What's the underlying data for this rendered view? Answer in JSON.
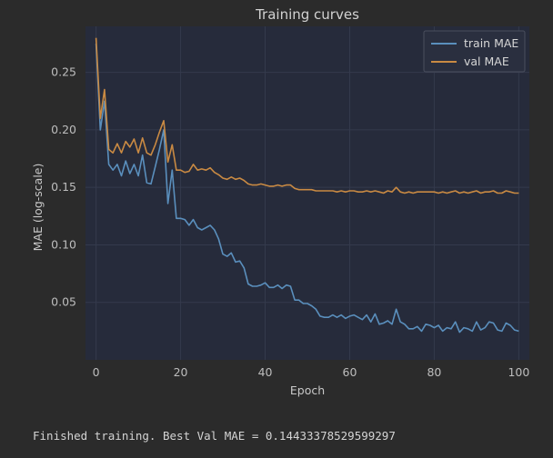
{
  "output": {
    "text": "Finished training. Best Val MAE = 0.14433378529599297"
  },
  "colors": {
    "background": "#2b2b2b",
    "plot_bg": "#262b3b",
    "grid": "#343a4c",
    "train": "#5a8fbd",
    "val": "#c98a43"
  },
  "chart_data": {
    "type": "line",
    "title": "Training curves",
    "xlabel": "Epoch",
    "ylabel": "MAE (log-scale)",
    "xlim": [
      -2.5,
      102.5
    ],
    "ylim": [
      0.0,
      0.29
    ],
    "xticks": [
      0,
      20,
      40,
      60,
      80,
      100
    ],
    "yticks": [
      0.05,
      0.1,
      0.15,
      0.2,
      0.25
    ],
    "ytick_labels": [
      "0.05",
      "0.10",
      "0.15",
      "0.20",
      "0.25"
    ],
    "grid": true,
    "legend": "top-right",
    "series": [
      {
        "name": "train MAE",
        "color": "#5a8fbd",
        "values": [
          0.275,
          0.2,
          0.225,
          0.17,
          0.165,
          0.17,
          0.16,
          0.173,
          0.162,
          0.17,
          0.16,
          0.178,
          0.154,
          0.153,
          0.168,
          0.183,
          0.2,
          0.136,
          0.165,
          0.123,
          0.123,
          0.122,
          0.117,
          0.122,
          0.115,
          0.113,
          0.115,
          0.117,
          0.113,
          0.105,
          0.092,
          0.09,
          0.093,
          0.085,
          0.086,
          0.08,
          0.066,
          0.064,
          0.064,
          0.065,
          0.067,
          0.063,
          0.063,
          0.065,
          0.062,
          0.065,
          0.064,
          0.052,
          0.052,
          0.049,
          0.049,
          0.047,
          0.044,
          0.038,
          0.037,
          0.037,
          0.039,
          0.037,
          0.039,
          0.036,
          0.038,
          0.039,
          0.037,
          0.035,
          0.039,
          0.033,
          0.04,
          0.031,
          0.032,
          0.034,
          0.031,
          0.044,
          0.033,
          0.031,
          0.027,
          0.027,
          0.029,
          0.025,
          0.031,
          0.03,
          0.028,
          0.03,
          0.025,
          0.028,
          0.027,
          0.033,
          0.024,
          0.028,
          0.027,
          0.025,
          0.033,
          0.026,
          0.028,
          0.033,
          0.032,
          0.026,
          0.025,
          0.032,
          0.03,
          0.026,
          0.025
        ]
      },
      {
        "name": "val MAE",
        "color": "#c98a43",
        "values": [
          0.28,
          0.21,
          0.235,
          0.183,
          0.18,
          0.188,
          0.18,
          0.19,
          0.185,
          0.192,
          0.18,
          0.193,
          0.18,
          0.178,
          0.187,
          0.198,
          0.208,
          0.172,
          0.187,
          0.165,
          0.165,
          0.163,
          0.164,
          0.17,
          0.165,
          0.166,
          0.165,
          0.167,
          0.163,
          0.161,
          0.158,
          0.157,
          0.159,
          0.157,
          0.158,
          0.156,
          0.153,
          0.152,
          0.152,
          0.153,
          0.152,
          0.151,
          0.151,
          0.152,
          0.151,
          0.152,
          0.152,
          0.149,
          0.148,
          0.148,
          0.148,
          0.148,
          0.147,
          0.147,
          0.147,
          0.147,
          0.147,
          0.146,
          0.147,
          0.146,
          0.147,
          0.147,
          0.146,
          0.146,
          0.147,
          0.146,
          0.147,
          0.146,
          0.145,
          0.147,
          0.146,
          0.15,
          0.146,
          0.145,
          0.146,
          0.145,
          0.146,
          0.146,
          0.146,
          0.146,
          0.146,
          0.145,
          0.146,
          0.145,
          0.146,
          0.147,
          0.145,
          0.146,
          0.145,
          0.146,
          0.147,
          0.145,
          0.146,
          0.146,
          0.147,
          0.145,
          0.145,
          0.147,
          0.146,
          0.145,
          0.145
        ]
      }
    ]
  }
}
